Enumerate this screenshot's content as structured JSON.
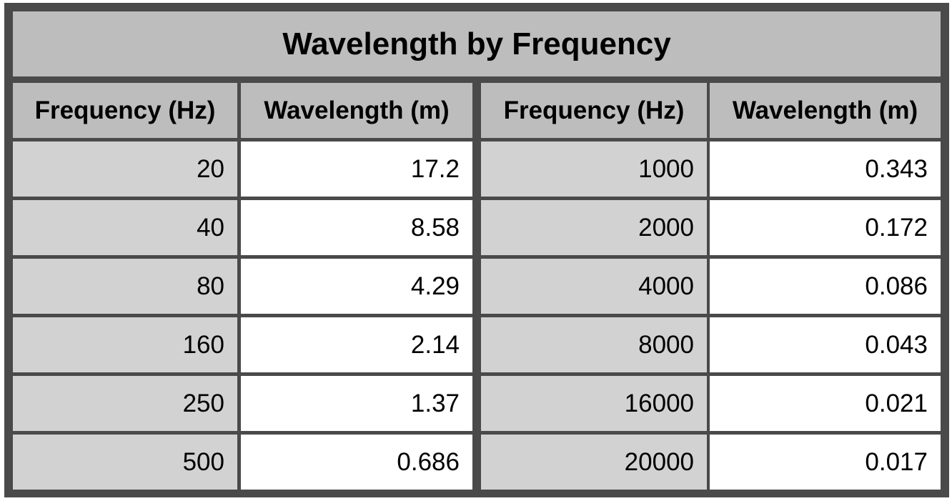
{
  "title": "Wavelength by Frequency",
  "headers": [
    "Frequency (Hz)",
    "Wavelength (m)",
    "Frequency (Hz)",
    "Wavelength (m)"
  ],
  "rows": [
    [
      "20",
      "17.2",
      "1000",
      "0.343"
    ],
    [
      "40",
      "8.58",
      "2000",
      "0.172"
    ],
    [
      "80",
      "4.29",
      "4000",
      "0.086"
    ],
    [
      "160",
      "2.14",
      "8000",
      "0.043"
    ],
    [
      "250",
      "1.37",
      "16000",
      "0.021"
    ],
    [
      "500",
      "0.686",
      "20000",
      "0.017"
    ]
  ]
}
